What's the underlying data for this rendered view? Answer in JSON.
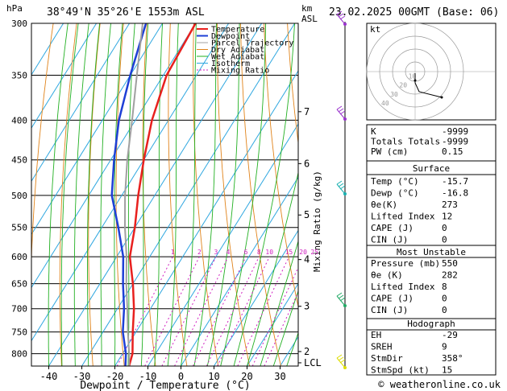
{
  "header": {
    "location": "38°49'N 35°26'E 1553m ASL",
    "datetime": "23.02.2025 00GMT (Base: 06)"
  },
  "chart_data": {
    "type": "line",
    "subtype": "skew-T log-P",
    "xlabel": "Dewpoint / Temperature (°C)",
    "ylabel_left": "hPa",
    "ylabel_right_top": "km",
    "ylabel_right_top2": "ASL",
    "mixing_ratio_label": "Mixing Ratio (g/kg)",
    "x_ticks": [
      -40,
      -30,
      -20,
      -10,
      0,
      10,
      20,
      30
    ],
    "pressure_ticks": [
      300,
      350,
      400,
      450,
      500,
      550,
      600,
      650,
      700,
      750,
      800
    ],
    "height_ticks": [
      {
        "label": "7",
        "p": 390
      },
      {
        "label": "6",
        "p": 455
      },
      {
        "label": "5",
        "p": 530
      },
      {
        "label": "4",
        "p": 605
      },
      {
        "label": "3",
        "p": 695
      },
      {
        "label": "2",
        "p": 795
      },
      {
        "label": "LCL",
        "p": 822
      }
    ],
    "mixing_ratio_labels": [
      "1",
      "2",
      "3",
      "4",
      "6",
      "8",
      "10",
      "15",
      "20",
      "25"
    ],
    "mixing_ratio_values": [
      1,
      2,
      3,
      4,
      6,
      8,
      10,
      15,
      20,
      25
    ],
    "legend": [
      "Temperature",
      "Dewpoint",
      "Parcel Trajectory",
      "Dry Adiabat",
      "Wet Adiabat",
      "Isotherm",
      "Mixing Ratio"
    ],
    "series": [
      {
        "name": "Temperature",
        "color": "#e8201e",
        "points": [
          [
            830,
            -15.7
          ],
          [
            800,
            -17
          ],
          [
            750,
            -21
          ],
          [
            700,
            -25
          ],
          [
            650,
            -30
          ],
          [
            600,
            -36
          ],
          [
            550,
            -40
          ],
          [
            500,
            -45
          ],
          [
            450,
            -50
          ],
          [
            400,
            -55
          ],
          [
            350,
            -59
          ],
          [
            300,
            -60
          ]
        ]
      },
      {
        "name": "Dewpoint",
        "color": "#1e3fd6",
        "points": [
          [
            830,
            -16.8
          ],
          [
            800,
            -19
          ],
          [
            750,
            -24
          ],
          [
            700,
            -28
          ],
          [
            650,
            -33
          ],
          [
            600,
            -38
          ],
          [
            550,
            -45
          ],
          [
            500,
            -53
          ],
          [
            450,
            -59
          ],
          [
            400,
            -65
          ],
          [
            350,
            -70
          ],
          [
            300,
            -75
          ]
        ]
      },
      {
        "name": "Parcel Trajectory",
        "color": "#a0a0a0",
        "points": [
          [
            830,
            -15.7
          ],
          [
            800,
            -18
          ],
          [
            750,
            -22.5
          ],
          [
            700,
            -27
          ],
          [
            650,
            -32
          ],
          [
            600,
            -37
          ],
          [
            550,
            -43
          ],
          [
            500,
            -49
          ],
          [
            450,
            -55
          ],
          [
            400,
            -61
          ],
          [
            350,
            -68
          ],
          [
            300,
            -76
          ]
        ]
      }
    ]
  },
  "hodograph": {
    "label": "kt",
    "ring_labels": [
      "10",
      "20",
      "30",
      "40"
    ]
  },
  "indices": [
    {
      "label": "K",
      "value": "-9999"
    },
    {
      "label": "Totals Totals",
      "value": "-9999"
    },
    {
      "label": "PW (cm)",
      "value": "0.15"
    }
  ],
  "surface": {
    "title": "Surface",
    "rows": [
      {
        "label": "Temp (°C)",
        "value": "-15.7"
      },
      {
        "label": "Dewp (°C)",
        "value": "-16.8"
      },
      {
        "label": "θe(K)",
        "value": "273"
      },
      {
        "label": "Lifted Index",
        "value": "12"
      },
      {
        "label": "CAPE (J)",
        "value": "0"
      },
      {
        "label": "CIN (J)",
        "value": "0"
      }
    ]
  },
  "most_unstable": {
    "title": "Most Unstable",
    "rows": [
      {
        "label": "Pressure (mb)",
        "value": "550"
      },
      {
        "label": "θe (K)",
        "value": "282"
      },
      {
        "label": "Lifted Index",
        "value": "8"
      },
      {
        "label": "CAPE (J)",
        "value": "0"
      },
      {
        "label": "CIN (J)",
        "value": "0"
      }
    ]
  },
  "hodograph_table": {
    "title": "Hodograph",
    "rows": [
      {
        "label": "EH",
        "value": "-29"
      },
      {
        "label": "SREH",
        "value": "9"
      },
      {
        "label": "StmDir",
        "value": "358°"
      },
      {
        "label": "StmSpd (kt)",
        "value": "15"
      }
    ]
  },
  "watermark": "© weatheronline.co.uk"
}
